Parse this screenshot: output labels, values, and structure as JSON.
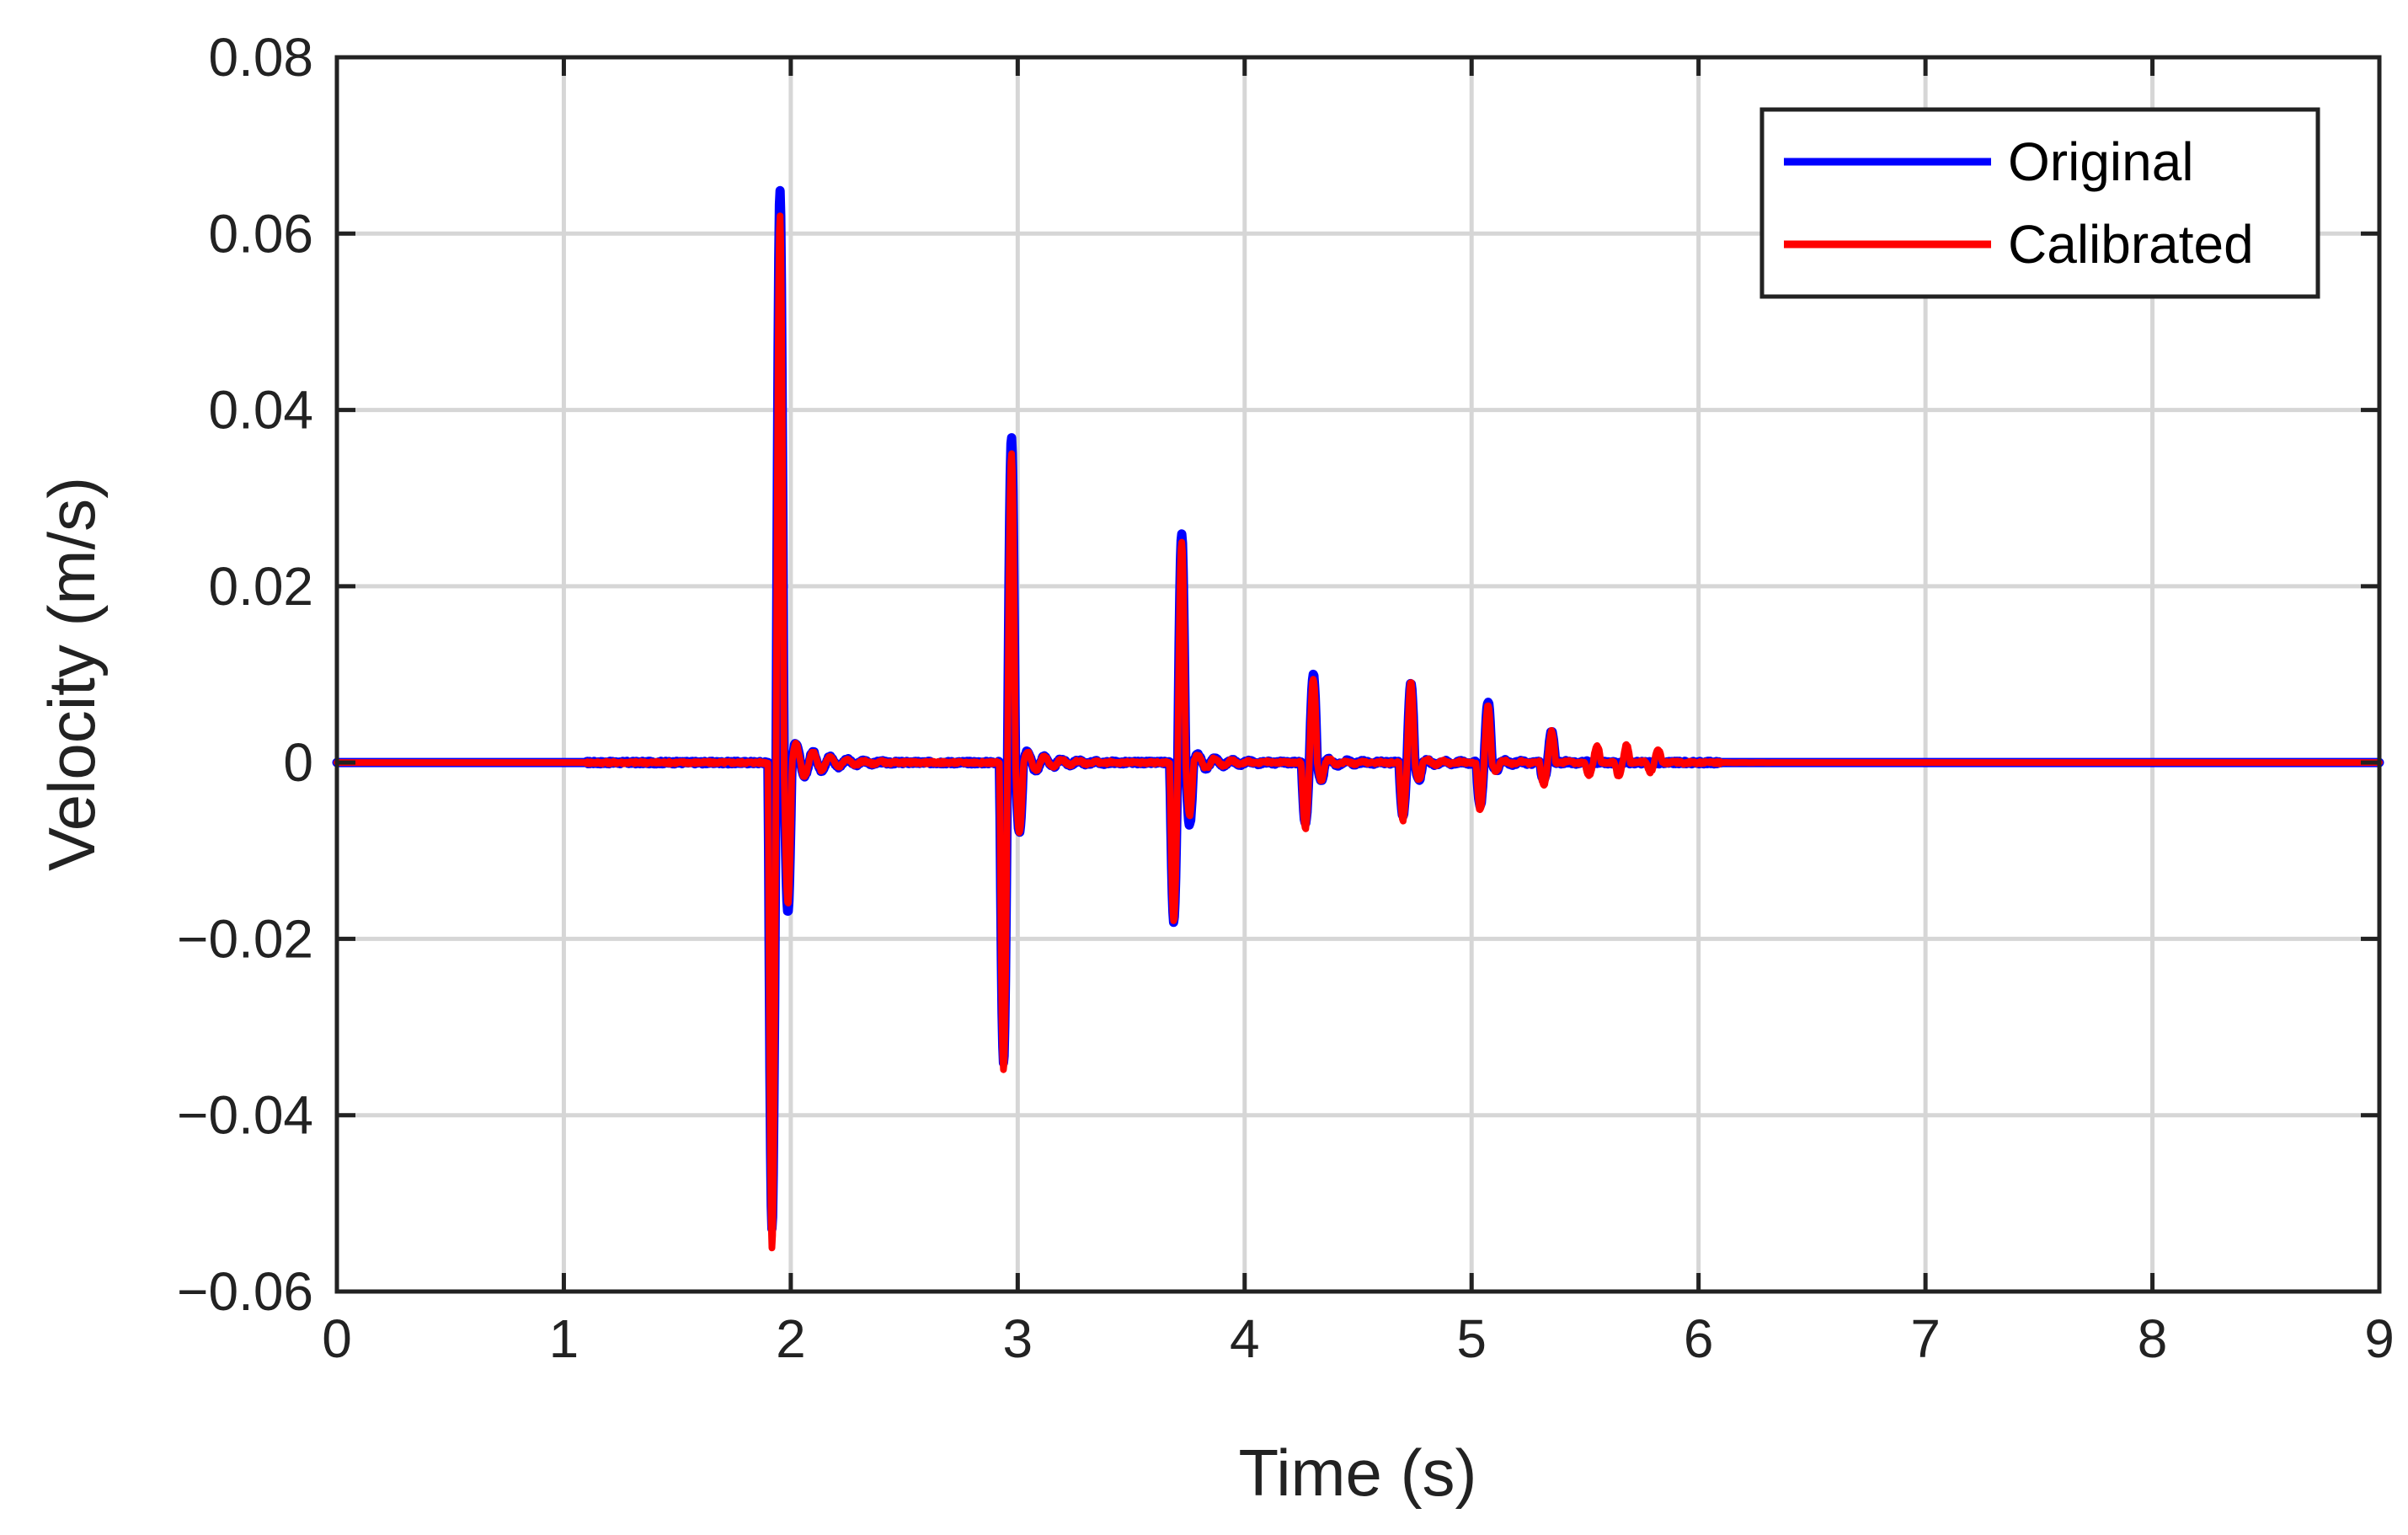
{
  "chart_data": {
    "type": "line",
    "title": "",
    "xlabel": "Time (s)",
    "ylabel": "Velocity (m/s)",
    "xlim": [
      0,
      9
    ],
    "ylim": [
      -0.06,
      0.08
    ],
    "xticks": [
      0,
      1,
      2,
      3,
      4,
      5,
      6,
      7,
      8,
      9
    ],
    "xtick_labels": [
      "0",
      "1",
      "2",
      "3",
      "4",
      "5",
      "6",
      "7",
      "8",
      "9"
    ],
    "yticks": [
      -0.06,
      -0.04,
      -0.02,
      0,
      0.02,
      0.04,
      0.06,
      0.08
    ],
    "ytick_labels": [
      "−0.06",
      "−0.04",
      "−0.02",
      "0",
      "0.02",
      "0.04",
      "0.06",
      "0.08"
    ],
    "grid": true,
    "legend_position": "top-right",
    "series": [
      {
        "name": "Original",
        "color": "#0000ff",
        "peaks": [
          {
            "t": 1.95,
            "max": 0.065,
            "min": -0.053,
            "after": -0.017
          },
          {
            "t": 2.97,
            "max": 0.037,
            "min": -0.034,
            "after": -0.008
          },
          {
            "t": 3.72,
            "max": 0.026,
            "min": -0.018,
            "after": -0.007
          },
          {
            "t": 4.3,
            "max": 0.01,
            "min": -0.007,
            "after": -0.002
          },
          {
            "t": 4.73,
            "max": 0.009,
            "min": -0.006,
            "after": -0.002
          },
          {
            "t": 5.07,
            "max": 0.007,
            "min": -0.005,
            "after": -0.001
          },
          {
            "t": 5.35,
            "max": 0.0035,
            "min": -0.002,
            "after": 0
          }
        ]
      },
      {
        "name": "Calibrated",
        "color": "#ff0000",
        "peaks": [
          {
            "t": 1.95,
            "max": 0.062,
            "min": -0.055,
            "after": -0.016
          },
          {
            "t": 2.97,
            "max": 0.035,
            "min": -0.035,
            "after": -0.008
          },
          {
            "t": 3.72,
            "max": 0.025,
            "min": -0.018,
            "after": -0.006
          },
          {
            "t": 4.3,
            "max": 0.0095,
            "min": -0.0075,
            "after": -0.002
          },
          {
            "t": 4.73,
            "max": 0.009,
            "min": -0.0065,
            "after": -0.002
          },
          {
            "t": 5.07,
            "max": 0.0065,
            "min": -0.0055,
            "after": -0.001
          },
          {
            "t": 5.35,
            "max": 0.0035,
            "min": -0.0025,
            "after": 0
          },
          {
            "t": 5.55,
            "max": 0.002,
            "min": -0.0015,
            "after": 0
          },
          {
            "t": 5.68,
            "max": 0.002,
            "min": -0.0015,
            "after": 0
          },
          {
            "t": 5.82,
            "max": 0.0015,
            "min": -0.001,
            "after": 0
          }
        ]
      }
    ]
  }
}
